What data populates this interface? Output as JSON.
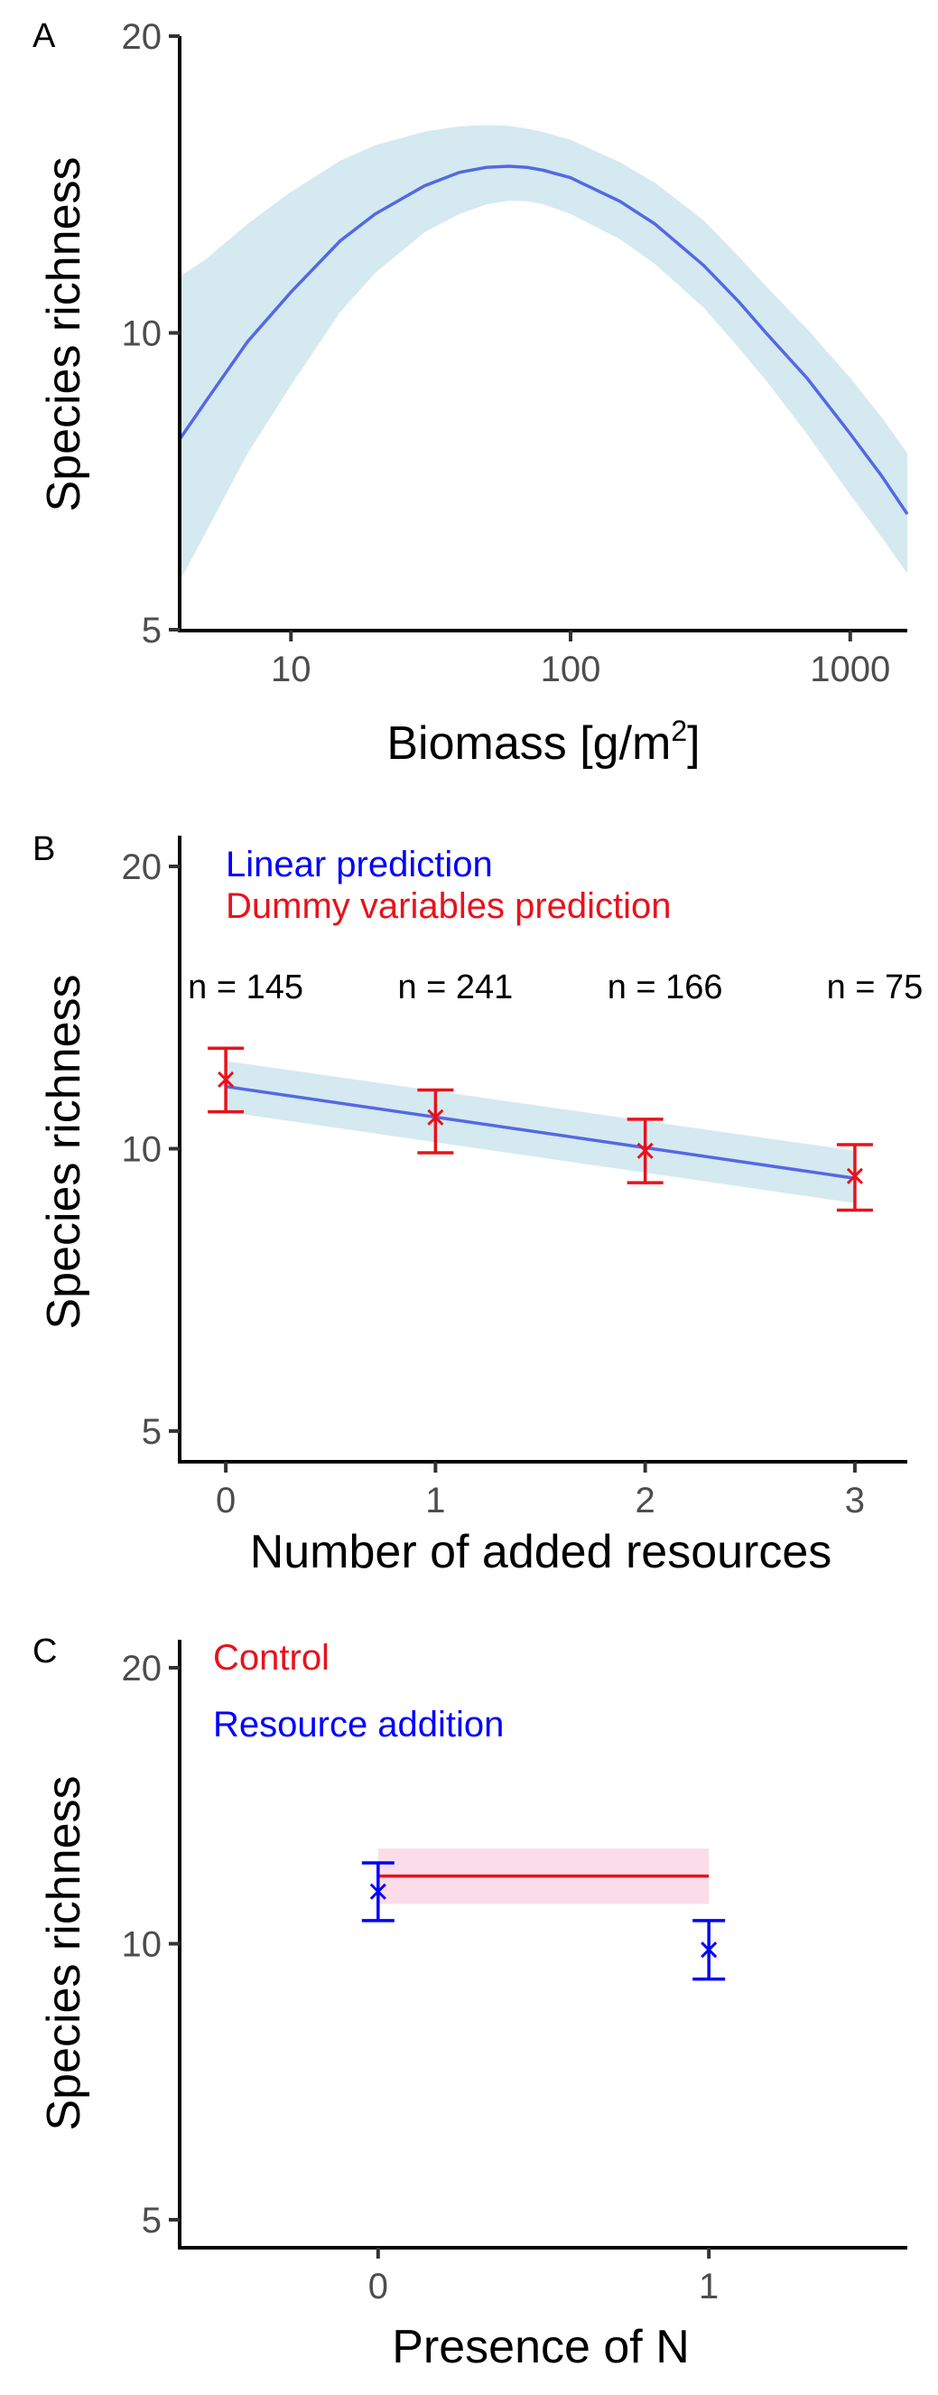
{
  "chart_data": [
    {
      "panel": "A",
      "type": "line",
      "xlabel": "Biomass [g/m",
      "xlabel_sup": "2",
      "xlabel_end": "]",
      "ylabel": "Species richness",
      "x_scale": "log10",
      "y_scale": "log",
      "xlim": [
        4,
        1600
      ],
      "ylim": [
        5,
        20
      ],
      "x_ticks": [
        10,
        100,
        1000
      ],
      "x_tick_labels": [
        "10",
        "100",
        "1000"
      ],
      "y_ticks": [
        5,
        10,
        20
      ],
      "y_tick_labels": [
        "5",
        "10",
        "20"
      ],
      "grid": false,
      "line_color": "#5468e6",
      "ribbon_color": "#d5e9f0",
      "series": [
        {
          "x": [
            4,
            5,
            7,
            10,
            15,
            20,
            30,
            40,
            50,
            60,
            70,
            80,
            100,
            150,
            200,
            300,
            400,
            500,
            700,
            1000,
            1300,
            1600
          ],
          "y": [
            7.8,
            8.55,
            9.8,
            11.0,
            12.4,
            13.2,
            14.1,
            14.55,
            14.72,
            14.76,
            14.72,
            14.62,
            14.37,
            13.6,
            12.9,
            11.7,
            10.75,
            10.0,
            9.0,
            7.9,
            7.15,
            6.55
          ],
          "lower": [
            5.6,
            6.3,
            7.55,
            8.85,
            10.5,
            11.5,
            12.65,
            13.2,
            13.5,
            13.62,
            13.6,
            13.5,
            13.2,
            12.45,
            11.75,
            10.6,
            9.65,
            8.95,
            7.9,
            6.85,
            6.2,
            5.7
          ],
          "upper": [
            11.4,
            11.9,
            12.9,
            13.9,
            14.95,
            15.5,
            16.0,
            16.2,
            16.25,
            16.22,
            16.12,
            15.98,
            15.7,
            14.9,
            14.2,
            13.0,
            11.95,
            11.15,
            10.1,
            9.0,
            8.2,
            7.55
          ]
        }
      ]
    },
    {
      "panel": "B",
      "type": "line",
      "xlabel": "Number of added resources",
      "ylabel": "Species richness",
      "y_scale": "log",
      "xlim": [
        -0.22,
        3.25
      ],
      "ylim": [
        5,
        20
      ],
      "x_ticks": [
        0,
        1,
        2,
        3
      ],
      "x_tick_labels": [
        "0",
        "1",
        "2",
        "3"
      ],
      "y_ticks": [
        5,
        10,
        20
      ],
      "y_tick_labels": [
        "5",
        "10",
        "20"
      ],
      "grid": false,
      "legend": [
        {
          "label": "Linear prediction",
          "color": "#0000ff"
        },
        {
          "label": "Dummy variables prediction",
          "color": "#e8121b"
        }
      ],
      "sample_sizes": [
        {
          "x": 0,
          "label": "n = 145"
        },
        {
          "x": 1,
          "label": "n = 241"
        },
        {
          "x": 2,
          "label": "n = 166"
        },
        {
          "x": 3,
          "label": "n = 75"
        }
      ],
      "series": [
        {
          "name": "Linear prediction",
          "color": "#5468e6",
          "ribbon_color": "#d5e9f0",
          "x": [
            0,
            3
          ],
          "y": [
            11.65,
            9.3
          ],
          "lower": [
            10.95,
            8.75
          ],
          "upper": [
            12.4,
            9.95
          ]
        },
        {
          "name": "Dummy variables prediction",
          "color": "#e8121b",
          "x": [
            0,
            1,
            2,
            3
          ],
          "y": [
            11.85,
            10.8,
            9.95,
            9.35
          ],
          "lower": [
            10.95,
            9.9,
            9.2,
            8.6
          ],
          "upper": [
            12.8,
            11.55,
            10.75,
            10.1
          ]
        }
      ]
    },
    {
      "panel": "C",
      "type": "scatter",
      "xlabel": "Presence of N",
      "ylabel": "Species richness",
      "y_scale": "log",
      "xlim": [
        -0.6,
        1.6
      ],
      "ylim": [
        5,
        20
      ],
      "x_ticks": [
        0,
        1
      ],
      "x_tick_labels": [
        "0",
        "1"
      ],
      "y_ticks": [
        5,
        10,
        20
      ],
      "y_tick_labels": [
        "5",
        "10",
        "20"
      ],
      "grid": false,
      "legend": [
        {
          "label": "Control",
          "color": "#e8121b"
        },
        {
          "label": "Resource addition",
          "color": "#0000ff"
        }
      ],
      "control": {
        "color": "#e8121b",
        "ribbon_color": "#fadde9",
        "x": [
          0,
          1
        ],
        "y": 11.85,
        "lower": 11.05,
        "upper": 12.7
      },
      "resource_addition": {
        "color": "#0000ff",
        "x": [
          0,
          1
        ],
        "y": [
          11.4,
          9.85
        ],
        "lower": [
          10.6,
          9.15
        ],
        "upper": [
          12.25,
          10.6
        ]
      }
    }
  ]
}
